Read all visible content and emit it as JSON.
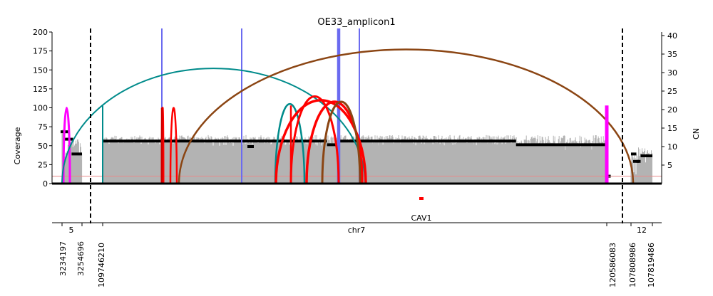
{
  "chart_data": {
    "type": "amplicon-coverage",
    "title": "OE33_amplicon1",
    "ylabel_left": "Coverage",
    "ylabel_right": "CN",
    "xlabel": "chr7",
    "ylim_left": [
      0,
      200
    ],
    "ylim_right": [
      0,
      42
    ],
    "left_ticks": [
      0,
      25,
      50,
      75,
      100,
      125,
      150,
      175,
      200
    ],
    "right_ticks": [
      5,
      10,
      15,
      20,
      25,
      30,
      35,
      40
    ],
    "segments": [
      {
        "label": "5",
        "start_label": "3234197",
        "end_label": "3254696"
      },
      {
        "label": "",
        "start_label": "109746210",
        "end_label": "120586083"
      },
      {
        "label": "12",
        "start_label": "107808986",
        "end_label": "107819486"
      }
    ],
    "coverage_blocks": [
      {
        "from": 0.0,
        "to": 0.08,
        "mean": 65,
        "seed": 1
      },
      {
        "from": 0.08,
        "to": 0.3,
        "mean": 40,
        "seed": 2
      },
      {
        "from": 0.3,
        "to": 0.95,
        "mean": 55,
        "seed": 3
      },
      {
        "from": 0.95,
        "to": 1.0,
        "mean": 38,
        "seed": 4
      },
      {
        "from": 0.0,
        "to": 0.4,
        "mean": 55,
        "seed": 5
      },
      {
        "from": 0.4,
        "to": 0.45,
        "mean": 50,
        "seed": 6
      },
      {
        "from": 0.45,
        "to": 1.0,
        "mean": 57,
        "seed": 7
      },
      {
        "from": 0.0,
        "to": 0.82,
        "mean": 57,
        "seed": 8
      },
      {
        "from": 0.82,
        "to": 1.0,
        "mean": 50,
        "seed": 9
      },
      {
        "from": 0.0,
        "to": 0.35,
        "mean": 35,
        "seed": 10
      },
      {
        "from": 0.35,
        "to": 1.0,
        "mean": 42,
        "seed": 11
      }
    ],
    "cn_segments": [
      {
        "cn": 14,
        "from": 0.0,
        "to": 0.35
      },
      {
        "cn": 12,
        "from": 0.35,
        "to": 0.55
      },
      {
        "cn": 8,
        "from": 0.55,
        "to": 1.0
      },
      {
        "cn": 11.5,
        "from": 0.0,
        "to": 0.445
      },
      {
        "cn": 10.5,
        "from": 0.445,
        "to": 0.465
      },
      {
        "cn": 11.5,
        "from": 0.465,
        "to": 0.82
      },
      {
        "cn": 10.5,
        "from": 0.82,
        "to": 0.998
      },
      {
        "cn": 2,
        "from": 0.998,
        "to": 1.0
      },
      {
        "cn": 8,
        "from": 0.0,
        "to": 0.25
      },
      {
        "cn": 6,
        "from": 0.25,
        "to": 0.45
      },
      {
        "cn": 7.5,
        "from": 0.45,
        "to": 1.0
      }
    ],
    "cn_threshold": 2,
    "gene": {
      "name": "CAV1",
      "color": "#ff0000"
    },
    "colors": {
      "coverage": "#b3b3b3",
      "cn": "#000000",
      "inversion_left": "#008b8b",
      "inversion_right": "#8b4513",
      "deletion": "#ff0000",
      "duplication": "#ff00ff",
      "discordant_source": "#6b6bf0",
      "threshold": "#e88888"
    },
    "breakpoints": [
      {
        "type": "duplication",
        "color": "#ff00ff",
        "height": 100
      },
      {
        "type": "inversion_left",
        "color": "#008b8b",
        "height": 152
      },
      {
        "type": "duplication",
        "color": "#ff0000",
        "height": 100
      },
      {
        "type": "deletion",
        "color": "#ff0000",
        "height": 100
      },
      {
        "type": "inversion_right",
        "color": "#8b4513",
        "height": 177
      },
      {
        "type": "inversion_left",
        "color": "#008b8b",
        "height": 105
      },
      {
        "type": "deletion",
        "color": "#ff0000",
        "height": 110
      },
      {
        "type": "deletion",
        "color": "#ff0000",
        "height": 115
      },
      {
        "type": "deletion",
        "color": "#ff0000",
        "height": 108
      },
      {
        "type": "inversion_right",
        "color": "#8b4513",
        "height": 108
      },
      {
        "type": "duplication",
        "color": "#ff00ff",
        "height": 100
      }
    ]
  }
}
